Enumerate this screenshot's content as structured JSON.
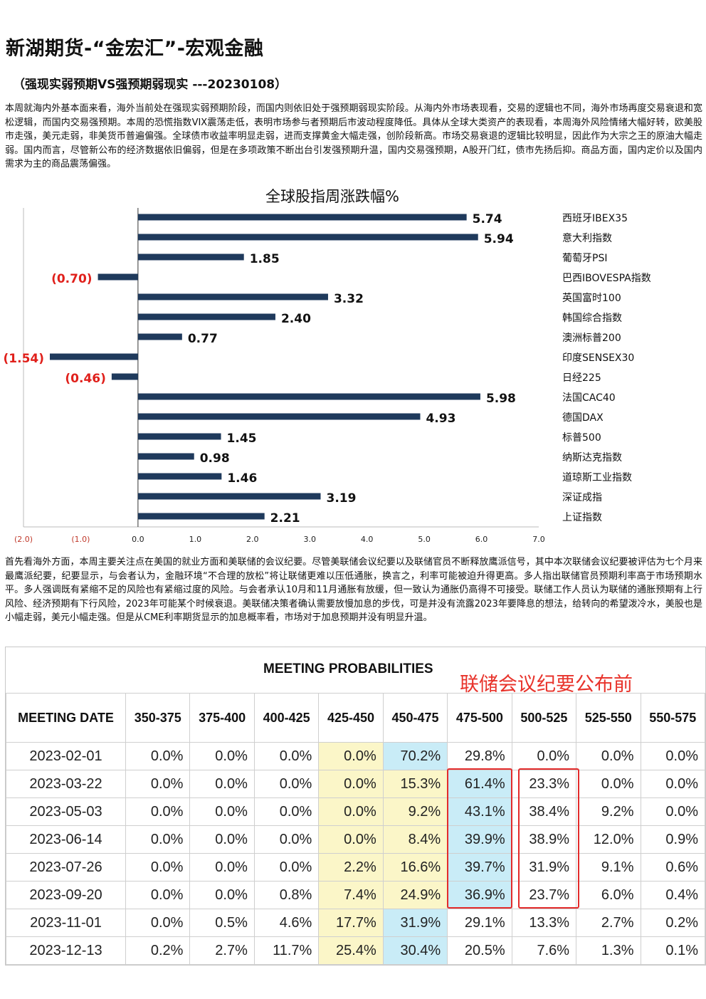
{
  "header": {
    "title": "新湖期货-“金宏汇”-宏观金融",
    "subtitle": "（强现实弱预期VS强预期弱现实 ---20230108）"
  },
  "para1": "本周就海内外基本面来看，海外当前处在强现实弱预期阶段，而国内则依旧处于强预期弱现实阶段。从海内外市场表现看，交易的逻辑也不同，海外市场再度交易衰退和宽松逻辑，而国内交易强预期。本周的恐慌指数VIX震荡走低，表明市场参与者预期后市波动程度降低。具体从全球大类资产的表现看，本周海外风险情绪大幅好转，欧美股市走强，美元走弱，非美货币普遍偏强。全球债市收益率明显走弱，进而支撑黄金大幅走强，创阶段新高。市场交易衰退的逻辑比较明显，因此作为大宗之王的原油大幅走弱。国内而言，尽管新公布的经济数据依旧偏弱，但是在多项政策不断出台引发强预期升温，国内交易强预期，A股开门红，债市先扬后抑。商品方面，国内定价以及国内需求为主的商品震荡偏强。",
  "para2": "首先看海外方面，本周主要关注点在美国的就业方面和美联储的会议纪要。尽管美联储会议纪要以及联储官员不断释放鹰派信号，其中本次联储会议纪要被评估为七个月来最鹰派纪要，纪要显示，与会者认为，金融环境“不合理的放松”将让联储更难以压低通胀，换言之，利率可能被迫升得更高。多人指出联储官员预期利率高于市场预期水平。多人强调既有紧缩不足的风险也有紧缩过度的风险。与会者承认10月和11月通胀有放缓，但一致认为通胀仍高得不可接受。联储工作人员认为联储的通胀预期有上行风险、经济预期有下行风险，2023年可能某个时候衰退。美联储决策者确认需要放慢加息的步伐，可是并没有流露2023年要降息的想法，给转向的希望泼冷水，美股也是小幅走弱，美元小幅走强。但是从CME利率期货显示的加息概率看，市场对于加息预期并没有明显升温。",
  "chart_data": {
    "type": "bar",
    "orientation": "horizontal",
    "title": "全球股指周涨跌幅%",
    "categories": [
      "西班牙IBEX35",
      "意大利指数",
      "葡萄牙PSI",
      "巴西IBOVESPA指数",
      "英国富时100",
      "韩国综合指数",
      "澳洲标普200",
      "印度SENSEX30",
      "日经225",
      "法国CAC40",
      "德国DAX",
      "标普500",
      "纳斯达克指数",
      "道琼斯工业指数",
      "深证成指",
      "上证指数"
    ],
    "values": [
      5.74,
      5.94,
      1.85,
      -0.7,
      3.32,
      2.4,
      0.77,
      -1.54,
      -0.46,
      5.98,
      4.93,
      1.45,
      0.98,
      1.46,
      3.19,
      2.21
    ],
    "value_labels": [
      "5.74",
      "5.94",
      "1.85",
      "(0.70)",
      "3.32",
      "2.40",
      "0.77",
      "(1.54)",
      "(0.46)",
      "5.98",
      "4.93",
      "1.45",
      "0.98",
      "1.46",
      "3.19",
      "2.21"
    ],
    "xticks": [
      "(2.0)",
      "(1.0)",
      "0.0",
      "1.0",
      "2.0",
      "3.0",
      "4.0",
      "5.0",
      "6.0",
      "7.0"
    ],
    "xlim": [
      -2.0,
      7.0
    ],
    "colors": {
      "bar": "#1f3a5c",
      "positive_label": "#111111",
      "negative_label": "#e0201b",
      "negative_tick": "#c0392b"
    }
  },
  "table": {
    "heading": "MEETING PROBABILITIES",
    "annotation": "联储会议纪要公布前",
    "columns": [
      "MEETING DATE",
      "350-375",
      "375-400",
      "400-425",
      "425-450",
      "450-475",
      "475-500",
      "500-525",
      "525-550",
      "550-575"
    ],
    "rows": [
      {
        "date": "2023-02-01",
        "cells": [
          "0.0%",
          "0.0%",
          "0.0%",
          "0.0%",
          "70.2%",
          "29.8%",
          "0.0%",
          "0.0%",
          "0.0%"
        ],
        "hl": [
          null,
          null,
          null,
          "y",
          "c",
          null,
          null,
          null,
          null
        ]
      },
      {
        "date": "2023-03-22",
        "cells": [
          "0.0%",
          "0.0%",
          "0.0%",
          "0.0%",
          "15.3%",
          "61.4%",
          "23.3%",
          "0.0%",
          "0.0%"
        ],
        "hl": [
          null,
          null,
          null,
          "y",
          "y",
          "c",
          null,
          null,
          null
        ]
      },
      {
        "date": "2023-05-03",
        "cells": [
          "0.0%",
          "0.0%",
          "0.0%",
          "0.0%",
          "9.2%",
          "43.1%",
          "38.4%",
          "9.2%",
          "0.0%"
        ],
        "hl": [
          null,
          null,
          null,
          "y",
          "y",
          "c",
          null,
          null,
          null
        ]
      },
      {
        "date": "2023-06-14",
        "cells": [
          "0.0%",
          "0.0%",
          "0.0%",
          "0.0%",
          "8.4%",
          "39.9%",
          "38.9%",
          "12.0%",
          "0.9%"
        ],
        "hl": [
          null,
          null,
          null,
          "y",
          "y",
          "c",
          null,
          null,
          null
        ]
      },
      {
        "date": "2023-07-26",
        "cells": [
          "0.0%",
          "0.0%",
          "0.0%",
          "2.2%",
          "16.6%",
          "39.7%",
          "31.9%",
          "9.1%",
          "0.6%"
        ],
        "hl": [
          null,
          null,
          null,
          "y",
          "y",
          "c",
          null,
          null,
          null
        ]
      },
      {
        "date": "2023-09-20",
        "cells": [
          "0.0%",
          "0.0%",
          "0.8%",
          "7.4%",
          "24.9%",
          "36.9%",
          "23.7%",
          "6.0%",
          "0.4%"
        ],
        "hl": [
          null,
          null,
          null,
          "y",
          "y",
          "c",
          null,
          null,
          null
        ]
      },
      {
        "date": "2023-11-01",
        "cells": [
          "0.0%",
          "0.5%",
          "4.6%",
          "17.7%",
          "31.9%",
          "29.1%",
          "13.3%",
          "2.7%",
          "0.2%"
        ],
        "hl": [
          null,
          null,
          null,
          "y",
          "c",
          null,
          null,
          null,
          null
        ]
      },
      {
        "date": "2023-12-13",
        "cells": [
          "0.2%",
          "2.7%",
          "11.7%",
          "25.4%",
          "30.4%",
          "20.5%",
          "7.6%",
          "1.3%",
          "0.1%"
        ],
        "hl": [
          null,
          null,
          null,
          "y",
          "c",
          null,
          null,
          null,
          null
        ]
      }
    ]
  }
}
